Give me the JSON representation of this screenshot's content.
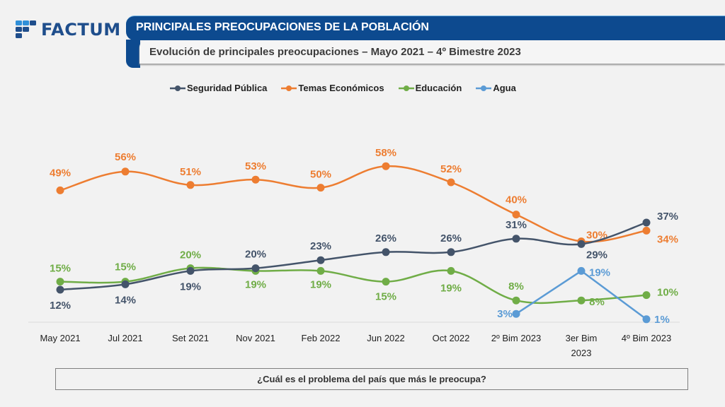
{
  "header": {
    "logo_text": "FACTUM",
    "title": "PRINCIPALES PREOCUPACIONES DE LA POBLACIÓN",
    "subtitle": "Evolución de principales preocupaciones – Mayo 2021 – 4º Bimestre 2023"
  },
  "question": "¿Cuál es el problema del país que más le preocupa?",
  "colors": {
    "seguridad": "#44546a",
    "economicos": "#ed7d31",
    "educacion": "#70ad47",
    "agua": "#5b9bd5",
    "title_bar": "#0d4a8f"
  },
  "chart_data": {
    "type": "line",
    "title": "Evolución de principales preocupaciones – Mayo 2021 – 4º Bimestre 2023",
    "xlabel": "",
    "ylabel": "",
    "ylim": [
      0,
      60
    ],
    "grid": false,
    "legend_position": "top",
    "categories": [
      "May 2021",
      "Jul 2021",
      "Set 2021",
      "Nov 2021",
      "Feb 2022",
      "Jun 2022",
      "Oct 2022",
      "2º Bim 2023",
      "3er Bim 2023",
      "4º Bim 2023"
    ],
    "series": [
      {
        "name": "Seguridad Pública",
        "key": "seguridad",
        "values": [
          12,
          14,
          19,
          20,
          23,
          26,
          26,
          31,
          29,
          37
        ],
        "labels": [
          "12%",
          "14%",
          "19%",
          "20%",
          "23%",
          "26%",
          "26%",
          "31%",
          "29%",
          "37%"
        ]
      },
      {
        "name": "Temas Económicos",
        "key": "economicos",
        "values": [
          49,
          56,
          51,
          53,
          50,
          58,
          52,
          40,
          30,
          34
        ],
        "labels": [
          "49%",
          "56%",
          "51%",
          "53%",
          "50%",
          "58%",
          "52%",
          "40%",
          "30%",
          "34%"
        ]
      },
      {
        "name": "Educación",
        "key": "educacion",
        "values": [
          15,
          15,
          20,
          19,
          19,
          15,
          19,
          8,
          8,
          10
        ],
        "labels": [
          "15%",
          "15%",
          "20%",
          "19%",
          "19%",
          "15%",
          "19%",
          "8%",
          "8%",
          "10%"
        ]
      },
      {
        "name": "Agua",
        "key": "agua",
        "values": [
          null,
          null,
          null,
          null,
          null,
          null,
          null,
          3,
          19,
          1
        ],
        "labels": [
          null,
          null,
          null,
          null,
          null,
          null,
          null,
          "3%",
          "19%",
          "1%"
        ]
      }
    ]
  }
}
